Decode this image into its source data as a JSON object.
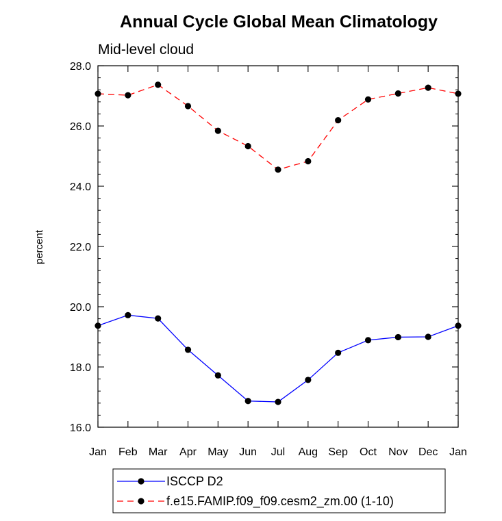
{
  "chart_data": {
    "type": "line",
    "title": "Annual Cycle Global Mean Climatology",
    "subtitle": "Mid-level cloud",
    "xlabel": "",
    "ylabel": "percent",
    "ylim": [
      16.0,
      28.0
    ],
    "y_ticks": [
      "16.0",
      "18.0",
      "20.0",
      "22.0",
      "24.0",
      "26.0",
      "28.0"
    ],
    "categories": [
      "Jan",
      "Feb",
      "Mar",
      "Apr",
      "May",
      "Jun",
      "Jul",
      "Aug",
      "Sep",
      "Oct",
      "Nov",
      "Dec",
      "Jan"
    ],
    "series": [
      {
        "name": "ISCCP D2",
        "color": "#0000ff",
        "style": "solid",
        "values": [
          19.37,
          19.72,
          19.61,
          18.57,
          17.72,
          16.87,
          16.84,
          17.57,
          18.47,
          18.89,
          18.99,
          19.0,
          19.37
        ]
      },
      {
        "name": "f.e15.FAMIP.f09_f09.cesm2_zm.00 (1-10)",
        "color": "#ff0000",
        "style": "dashed",
        "values": [
          27.07,
          27.02,
          27.37,
          26.66,
          25.84,
          25.33,
          24.55,
          24.83,
          26.19,
          26.88,
          27.08,
          27.27,
          27.07
        ]
      }
    ],
    "grid": false,
    "legend_position": "bottom"
  }
}
